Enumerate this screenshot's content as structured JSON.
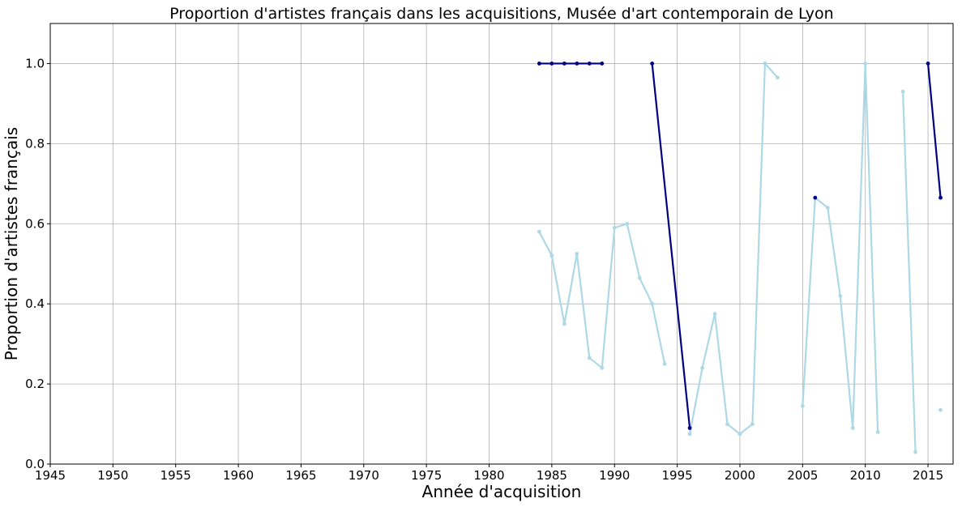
{
  "chart_data": {
    "type": "line",
    "title": "Proportion d'artistes français dans les acquisitions, Musée d'art contemporain de Lyon",
    "xlabel": "Année d'acquisition",
    "ylabel": "Proportion d'artistes français",
    "xlim": [
      1945,
      2017
    ],
    "ylim": [
      0,
      1.1
    ],
    "xticks": [
      1945,
      1950,
      1955,
      1960,
      1965,
      1970,
      1975,
      1980,
      1985,
      1990,
      1995,
      2000,
      2005,
      2010,
      2015
    ],
    "yticks": [
      0.0,
      0.2,
      0.4,
      0.6,
      0.8,
      1.0
    ],
    "grid": true,
    "series": [
      {
        "color": "#add8e6",
        "points": [
          [
            1984,
            0.58
          ],
          [
            1985,
            0.52
          ],
          [
            1986,
            0.35
          ],
          [
            1987,
            0.525
          ],
          [
            1988,
            0.265
          ],
          [
            1989,
            0.24
          ],
          [
            1990,
            0.59
          ],
          [
            1991,
            0.6
          ],
          [
            1992,
            0.465
          ],
          [
            1993,
            0.4
          ],
          [
            1994,
            0.25
          ],
          null,
          [
            1996,
            0.075
          ],
          [
            1997,
            0.24
          ],
          [
            1998,
            0.375
          ],
          [
            1999,
            0.1
          ],
          [
            2000,
            0.075
          ],
          [
            2001,
            0.1
          ],
          [
            2002,
            1.0
          ],
          [
            2003,
            0.965
          ],
          null,
          [
            2005,
            0.145
          ],
          [
            2006,
            0.665
          ],
          [
            2007,
            0.64
          ],
          [
            2008,
            0.42
          ],
          [
            2009,
            0.09
          ],
          [
            2010,
            1.0
          ],
          [
            2011,
            0.08
          ],
          null,
          [
            2013,
            0.93
          ],
          [
            2014,
            0.03
          ],
          null,
          [
            2016,
            0.135
          ]
        ]
      },
      {
        "color": "#000080",
        "points": [
          [
            1984,
            1.0
          ],
          [
            1985,
            1.0
          ],
          [
            1986,
            1.0
          ],
          [
            1987,
            1.0
          ],
          [
            1988,
            1.0
          ],
          [
            1989,
            1.0
          ],
          null,
          [
            1993,
            1.0
          ],
          [
            1996,
            0.09
          ],
          null,
          [
            2006,
            0.665
          ],
          null,
          [
            2015,
            1.0
          ],
          [
            2016,
            0.665
          ]
        ]
      }
    ]
  }
}
